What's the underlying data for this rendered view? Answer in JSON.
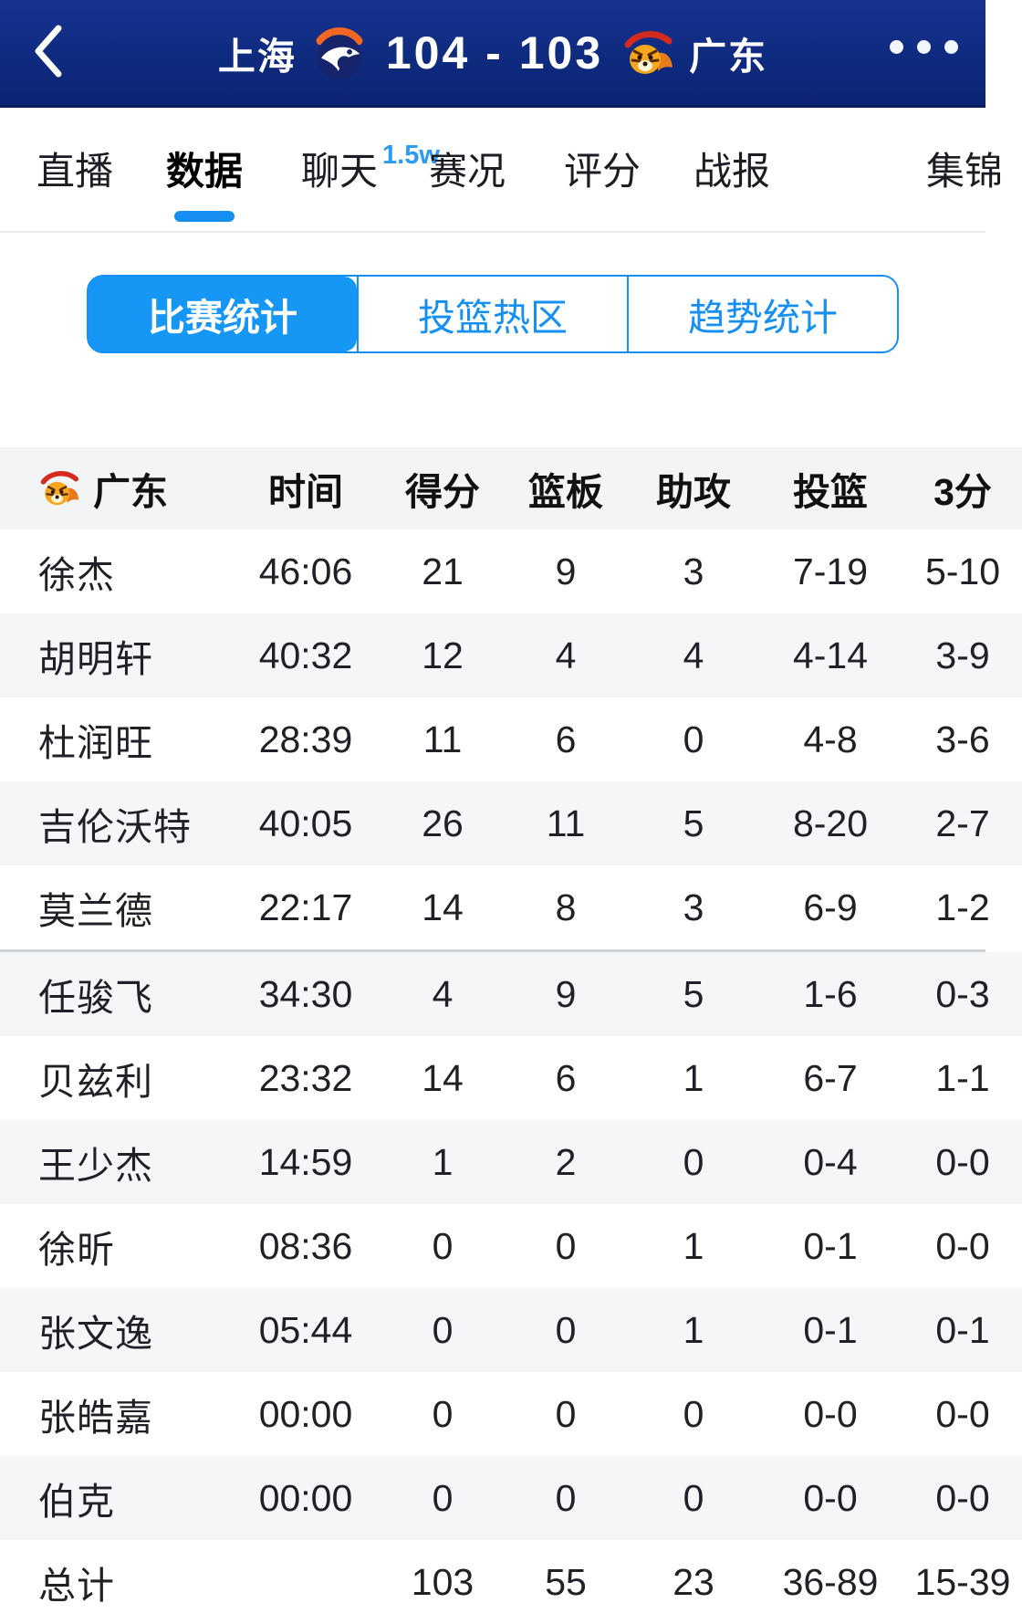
{
  "header": {
    "home_team": "上海",
    "away_team": "广东",
    "score": "104 - 103"
  },
  "tabs": [
    {
      "label": "直播"
    },
    {
      "label": "数据"
    },
    {
      "label": "聊天",
      "badge": "1.5w"
    },
    {
      "label": "赛况"
    },
    {
      "label": "评分"
    },
    {
      "label": "战报"
    },
    {
      "label": "集锦"
    }
  ],
  "segments": [
    {
      "label": "比赛统计"
    },
    {
      "label": "投篮热区"
    },
    {
      "label": "趋势统计"
    }
  ],
  "stats_table": {
    "team": "广东",
    "columns": {
      "time": "时间",
      "points": "得分",
      "rebounds": "篮板",
      "assists": "助攻",
      "fg": "投篮",
      "three": "3分"
    },
    "divider_after_index": 4,
    "rows": [
      {
        "name": "徐杰",
        "time": "46:06",
        "pts": "21",
        "reb": "9",
        "ast": "3",
        "fg": "7-19",
        "tp": "5-10"
      },
      {
        "name": "胡明轩",
        "time": "40:32",
        "pts": "12",
        "reb": "4",
        "ast": "4",
        "fg": "4-14",
        "tp": "3-9"
      },
      {
        "name": "杜润旺",
        "time": "28:39",
        "pts": "11",
        "reb": "6",
        "ast": "0",
        "fg": "4-8",
        "tp": "3-6"
      },
      {
        "name": "吉伦沃特",
        "time": "40:05",
        "pts": "26",
        "reb": "11",
        "ast": "5",
        "fg": "8-20",
        "tp": "2-7"
      },
      {
        "name": "莫兰德",
        "time": "22:17",
        "pts": "14",
        "reb": "8",
        "ast": "3",
        "fg": "6-9",
        "tp": "1-2"
      },
      {
        "name": "任骏飞",
        "time": "34:30",
        "pts": "4",
        "reb": "9",
        "ast": "5",
        "fg": "1-6",
        "tp": "0-3"
      },
      {
        "name": "贝兹利",
        "time": "23:32",
        "pts": "14",
        "reb": "6",
        "ast": "1",
        "fg": "6-7",
        "tp": "1-1"
      },
      {
        "name": "王少杰",
        "time": "14:59",
        "pts": "1",
        "reb": "2",
        "ast": "0",
        "fg": "0-4",
        "tp": "0-0"
      },
      {
        "name": "徐昕",
        "time": "08:36",
        "pts": "0",
        "reb": "0",
        "ast": "1",
        "fg": "0-1",
        "tp": "0-0"
      },
      {
        "name": "张文逸",
        "time": "05:44",
        "pts": "0",
        "reb": "0",
        "ast": "1",
        "fg": "0-1",
        "tp": "0-1"
      },
      {
        "name": "张皓嘉",
        "time": "00:00",
        "pts": "0",
        "reb": "0",
        "ast": "0",
        "fg": "0-0",
        "tp": "0-0"
      },
      {
        "name": "伯克",
        "time": "00:00",
        "pts": "0",
        "reb": "0",
        "ast": "0",
        "fg": "0-0",
        "tp": "0-0"
      }
    ],
    "totals": {
      "name": "总计",
      "time": "",
      "pts": "103",
      "reb": "55",
      "ast": "23",
      "fg": "36-89",
      "tp": "15-39"
    }
  },
  "colors": {
    "accent_blue": "#1590f2",
    "header_navy": "#0e2a7e"
  }
}
